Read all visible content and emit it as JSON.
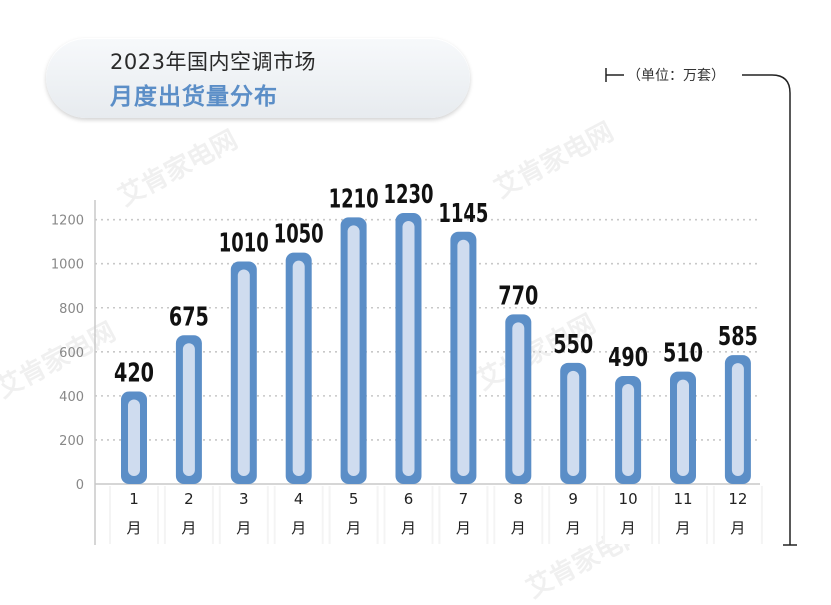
{
  "header": {
    "title_line1": "2023年国内空调市场",
    "title_line2": "月度出货量分布",
    "unit": "（单位：万套）"
  },
  "watermark": "艾肯家电网",
  "colors": {
    "bar_fill": "#5b8ec7",
    "bar_inner": "#cfdcef",
    "grid": "#c8c8c8",
    "axis_text": "#888888",
    "value_text": "#111111",
    "title_accent": "#5b8ec7"
  },
  "chart_data": {
    "type": "bar",
    "categories": [
      "1月",
      "2月",
      "3月",
      "4月",
      "5月",
      "6月",
      "7月",
      "8月",
      "9月",
      "10月",
      "11月",
      "12月"
    ],
    "category_parts": [
      [
        "1",
        "月"
      ],
      [
        "2",
        "月"
      ],
      [
        "3",
        "月"
      ],
      [
        "4",
        "月"
      ],
      [
        "5",
        "月"
      ],
      [
        "6",
        "月"
      ],
      [
        "7",
        "月"
      ],
      [
        "8",
        "月"
      ],
      [
        "9",
        "月"
      ],
      [
        "10",
        "月"
      ],
      [
        "11",
        "月"
      ],
      [
        "12",
        "月"
      ]
    ],
    "values": [
      420,
      675,
      1010,
      1050,
      1210,
      1230,
      1145,
      770,
      550,
      490,
      510,
      585
    ],
    "yticks": [
      0,
      200,
      400,
      600,
      800,
      1000,
      1200
    ],
    "ylim": [
      0,
      1300
    ],
    "grid": true,
    "data_labels": true
  }
}
